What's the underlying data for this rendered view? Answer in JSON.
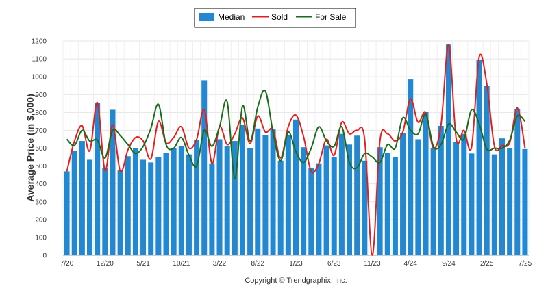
{
  "chart_data": {
    "type": "bar",
    "ylabel": "Average Price (in $,000)",
    "ylim": [
      0,
      1200
    ],
    "yticks": [
      0,
      100,
      200,
      300,
      400,
      500,
      600,
      700,
      800,
      900,
      1000,
      1100,
      1200
    ],
    "grid": true,
    "legend_position": "top-center",
    "categories": [
      "7/20",
      "8/20",
      "9/20",
      "10/20",
      "11/20",
      "12/20",
      "1/21",
      "2/21",
      "3/21",
      "4/21",
      "5/21",
      "6/21",
      "7/21",
      "8/21",
      "9/21",
      "10/21",
      "11/21",
      "12/21",
      "1/22",
      "2/22",
      "3/22",
      "4/22",
      "5/22",
      "6/22",
      "7/22",
      "8/22",
      "9/22",
      "10/22",
      "11/22",
      "12/22",
      "1/23",
      "2/23",
      "3/23",
      "4/23",
      "5/23",
      "6/23",
      "7/23",
      "8/23",
      "9/23",
      "10/23",
      "11/23",
      "12/23",
      "1/24",
      "2/24",
      "3/24",
      "4/24",
      "5/24",
      "6/24",
      "7/24",
      "8/24",
      "9/24",
      "10/24",
      "11/24",
      "12/24",
      "1/25",
      "2/25",
      "3/25",
      "4/25",
      "5/25",
      "6/25",
      "7/25"
    ],
    "tick_labels": [
      "7/20",
      "12/20",
      "5/21",
      "10/21",
      "3/22",
      "8/22",
      "1/23",
      "6/23",
      "11/23",
      "4/24",
      "9/24",
      "2/25",
      "7/25"
    ],
    "series": [
      {
        "name": "Median",
        "type": "bar",
        "color": "#2388d0",
        "values": [
          470,
          585,
          640,
          535,
          855,
          490,
          815,
          475,
          555,
          600,
          535,
          520,
          550,
          575,
          600,
          610,
          565,
          645,
          980,
          515,
          650,
          610,
          640,
          730,
          600,
          710,
          675,
          705,
          530,
          675,
          760,
          605,
          490,
          515,
          615,
          550,
          680,
          620,
          670,
          530,
          0,
          605,
          575,
          550,
          685,
          985,
          650,
          805,
          600,
          725,
          1180,
          635,
          680,
          570,
          1095,
          950,
          565,
          655,
          600,
          820,
          595
        ]
      },
      {
        "name": "Sold",
        "type": "line",
        "color": "#e02020",
        "values": [
          470,
          640,
          725,
          585,
          855,
          475,
          730,
          470,
          590,
          660,
          640,
          540,
          750,
          630,
          660,
          720,
          600,
          650,
          815,
          515,
          720,
          620,
          680,
          770,
          625,
          780,
          690,
          705,
          545,
          720,
          785,
          665,
          470,
          515,
          650,
          560,
          745,
          680,
          700,
          650,
          0,
          640,
          680,
          640,
          690,
          875,
          745,
          800,
          600,
          730,
          1180,
          650,
          700,
          605,
          1110,
          960,
          610,
          615,
          630,
          825,
          600
        ]
      },
      {
        "name": "For Sale",
        "type": "line",
        "color": "#1a6b1a",
        "values": [
          650,
          615,
          700,
          640,
          645,
          545,
          700,
          670,
          620,
          570,
          610,
          710,
          845,
          620,
          600,
          660,
          560,
          500,
          700,
          610,
          720,
          860,
          430,
          835,
          640,
          830,
          920,
          690,
          530,
          690,
          580,
          520,
          600,
          720,
          640,
          610,
          720,
          520,
          490,
          570,
          550,
          520,
          620,
          600,
          770,
          700,
          680,
          790,
          610,
          620,
          735,
          690,
          650,
          815,
          735,
          595,
          600,
          600,
          645,
          780,
          750
        ]
      }
    ]
  },
  "legend": {
    "items": [
      {
        "label": "Median",
        "kind": "bar",
        "color": "#2388d0"
      },
      {
        "label": "Sold",
        "kind": "line",
        "color": "#e02020"
      },
      {
        "label": "For Sale",
        "kind": "line",
        "color": "#1a6b1a"
      }
    ]
  },
  "footer": {
    "copyright": "Copyright © Trendgraphix, Inc."
  }
}
